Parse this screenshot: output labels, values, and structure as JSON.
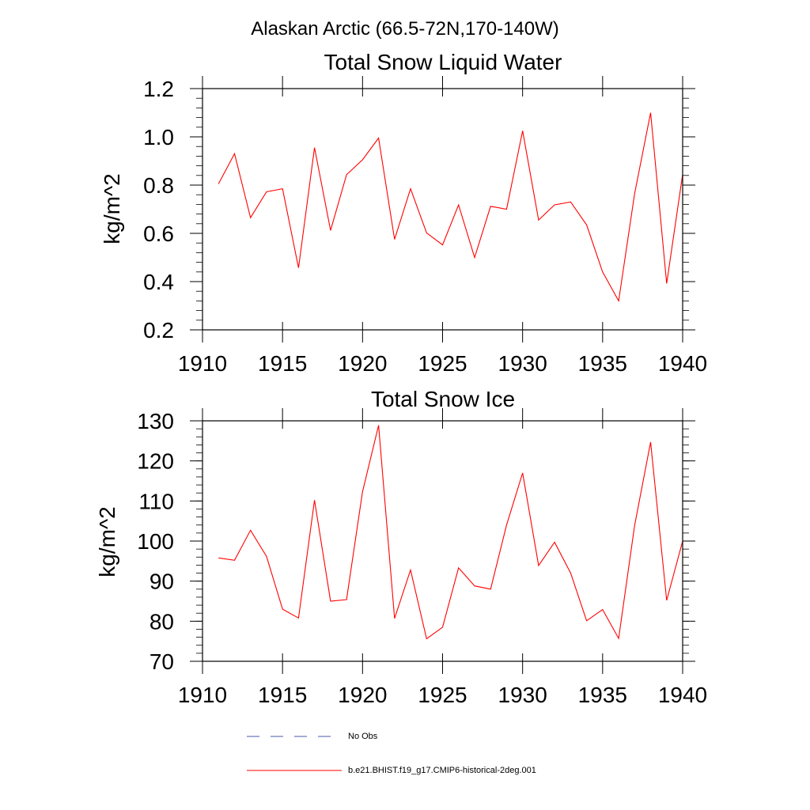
{
  "figure": {
    "title": "Alaskan Arctic (66.5-72N,170-140W)"
  },
  "chart_data": [
    {
      "type": "line",
      "title": "Total Snow Liquid Water",
      "xlabel": "",
      "ylabel": "kg/m^2",
      "xlim": [
        1910,
        1940
      ],
      "ylim": [
        0.2,
        1.2
      ],
      "x_ticks": [
        "1910",
        "1915",
        "1920",
        "1925",
        "1930",
        "1935",
        "1940"
      ],
      "y_ticks": [
        "0.2",
        "0.4",
        "0.6",
        "0.8",
        "1.0",
        "1.2"
      ],
      "x": [
        1911,
        1912,
        1913,
        1914,
        1915,
        1916,
        1917,
        1918,
        1919,
        1920,
        1921,
        1922,
        1923,
        1924,
        1925,
        1926,
        1927,
        1928,
        1929,
        1930,
        1931,
        1932,
        1933,
        1934,
        1935,
        1936,
        1937,
        1938,
        1939,
        1940
      ],
      "series": [
        {
          "name": "b.e21.BHIST.f19_g17.CMIP6-historical-2deg.001",
          "color": "#ff0000",
          "values": [
            0.805,
            0.93,
            0.665,
            0.772,
            0.785,
            0.457,
            0.955,
            0.612,
            0.843,
            0.905,
            0.995,
            0.575,
            0.785,
            0.602,
            0.552,
            0.718,
            0.5,
            0.712,
            0.7,
            1.025,
            0.655,
            0.718,
            0.73,
            0.635,
            0.44,
            0.32,
            0.765,
            1.1,
            0.392,
            0.845
          ]
        }
      ]
    },
    {
      "type": "line",
      "title": "Total Snow Ice",
      "xlabel": "",
      "ylabel": "kg/m^2",
      "xlim": [
        1910,
        1940
      ],
      "ylim": [
        70,
        130
      ],
      "x_ticks": [
        "1910",
        "1915",
        "1920",
        "1925",
        "1930",
        "1935",
        "1940"
      ],
      "y_ticks": [
        "70",
        "80",
        "90",
        "100",
        "110",
        "120",
        "130"
      ],
      "x": [
        1911,
        1912,
        1913,
        1914,
        1915,
        1916,
        1917,
        1918,
        1919,
        1920,
        1921,
        1922,
        1923,
        1924,
        1925,
        1926,
        1927,
        1928,
        1929,
        1930,
        1931,
        1932,
        1933,
        1934,
        1935,
        1936,
        1937,
        1938,
        1939,
        1940
      ],
      "series": [
        {
          "name": "b.e21.BHIST.f19_g17.CMIP6-historical-2deg.001",
          "color": "#ff0000",
          "values": [
            95.8,
            95.2,
            102.7,
            96.2,
            83.0,
            80.8,
            110.2,
            85.0,
            85.4,
            112.3,
            128.9,
            80.7,
            92.8,
            75.6,
            78.5,
            93.3,
            88.8,
            88.0,
            104.0,
            117.0,
            93.9,
            99.7,
            92.0,
            80.1,
            82.9,
            75.7,
            103.9,
            124.7,
            85.2,
            100.0
          ]
        }
      ]
    }
  ],
  "legend": {
    "placement": "bottom",
    "items": [
      {
        "label": "No Obs",
        "color": "#4a5aa8",
        "style": "dashed"
      },
      {
        "label": "b.e21.BHIST.f19_g17.CMIP6-historical-2deg.001",
        "color": "#ff0000",
        "style": "solid"
      }
    ]
  }
}
